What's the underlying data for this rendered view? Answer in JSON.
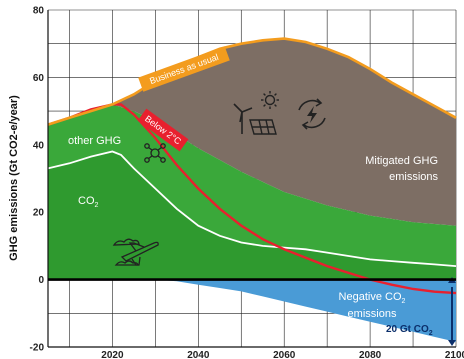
{
  "chart_data": {
    "type": "area",
    "title": "",
    "xlabel": "",
    "ylabel": "GHG emissions (Gt CO2-e/year)",
    "xlim": [
      2005,
      2100
    ],
    "ylim": [
      -20,
      80
    ],
    "x_ticks": [
      2020,
      2040,
      2060,
      2080,
      2100
    ],
    "y_ticks": [
      -20,
      0,
      20,
      40,
      60,
      80
    ],
    "grid": true,
    "series": [
      {
        "name": "Business as usual",
        "x": [
          2005,
          2010,
          2015,
          2020,
          2025,
          2030,
          2035,
          2040,
          2045,
          2050,
          2055,
          2060,
          2065,
          2070,
          2075,
          2080,
          2085,
          2090,
          2095,
          2100
        ],
        "values": [
          46,
          48,
          50,
          52,
          55,
          59,
          63,
          66,
          68.5,
          70,
          71,
          71.5,
          70.5,
          68.5,
          66,
          62.5,
          58.5,
          55,
          51.5,
          48
        ]
      },
      {
        "name": "Below 2°C",
        "x": [
          2005,
          2010,
          2015,
          2020,
          2022,
          2025,
          2030,
          2035,
          2040,
          2045,
          2050,
          2055,
          2060,
          2065,
          2070,
          2075,
          2080,
          2085,
          2090,
          2095,
          2100
        ],
        "values": [
          46,
          48,
          50.5,
          52,
          52,
          49,
          42,
          34,
          27,
          21,
          16,
          12,
          9,
          6.5,
          4,
          2,
          0,
          -1.5,
          -2.8,
          -3.6,
          -4
        ]
      },
      {
        "name": "other GHG",
        "x": [
          2005,
          2010,
          2015,
          2020,
          2025,
          2030,
          2035,
          2040,
          2045,
          2050,
          2055,
          2060,
          2065,
          2070,
          2075,
          2080,
          2085,
          2090,
          2095,
          2100
        ],
        "values": [
          46,
          48,
          50.5,
          52,
          50,
          47,
          43,
          39,
          35.5,
          32,
          29,
          26,
          24,
          22,
          20.5,
          19,
          18,
          17,
          16.5,
          16
        ]
      },
      {
        "name": "CO2",
        "x": [
          2005,
          2010,
          2015,
          2020,
          2022,
          2025,
          2030,
          2035,
          2040,
          2045,
          2050,
          2055,
          2060,
          2065,
          2070,
          2075,
          2080,
          2085,
          2090,
          2095,
          2100
        ],
        "values": [
          33,
          34.5,
          36.5,
          38,
          37,
          33,
          27,
          21,
          16,
          13,
          11,
          10,
          9.5,
          9,
          8,
          7,
          6,
          5.5,
          5,
          4.5,
          4
        ]
      },
      {
        "name": "Negative CO2 emissions",
        "x": [
          2005,
          2030,
          2035,
          2040,
          2045,
          2050,
          2055,
          2060,
          2065,
          2070,
          2075,
          2080,
          2085,
          2090,
          2095,
          2100
        ],
        "values": [
          0,
          0,
          -0.5,
          -1.5,
          -2.5,
          -3.5,
          -5,
          -6.5,
          -8,
          -9.5,
          -11,
          -12.5,
          -14,
          -15.5,
          -17,
          -18.5
        ]
      }
    ],
    "annotations": {
      "business_as_usual": "Business as usual",
      "below_2c": "Below 2°C",
      "other_ghg": "other GHG",
      "co2": "CO",
      "co2_sub": "2",
      "mitigated_line1": "Mitigated GHG",
      "mitigated_line2": "emissions",
      "negative_line1": "Negative CO",
      "negative_line1_sub": "2",
      "negative_line2": "emissions",
      "gt_label": "20 Gt CO",
      "gt_label_sub": "2"
    },
    "colors": {
      "mitigated": "#7d6e64",
      "other_ghg": "#3aa83a",
      "co2_area": "#2f9a2f",
      "negative": "#4a9bd6",
      "bau_line": "#f39c1e",
      "below2_line": "#e8202e",
      "co2_line": "#ffffff"
    },
    "icons": [
      "wind-turbine-icon",
      "solar-panel-icon",
      "sun-icon",
      "energy-cycle-icon",
      "molecule-icon",
      "airplane-icon"
    ]
  }
}
